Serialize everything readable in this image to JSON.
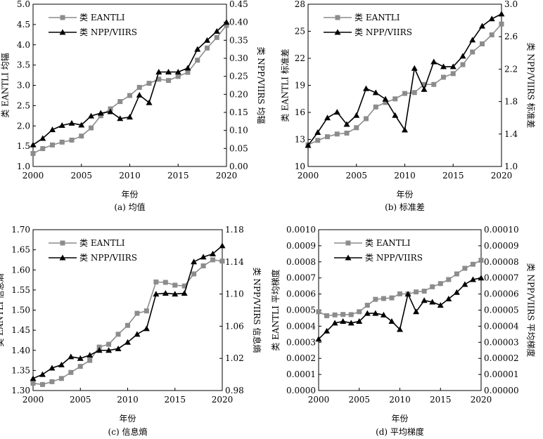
{
  "chart_data": [
    {
      "type": "line",
      "caption": "(a) 均值",
      "xlabel": "年份",
      "ylabel_left": "类 EANTLI 均辐",
      "ylabel_right": "类 NPP/VIIRS 均辐",
      "xlim": [
        2000,
        2020
      ],
      "x_ticks": [
        "2000",
        "2005",
        "2010",
        "2015",
        "2020"
      ],
      "ylim_left": [
        1.0,
        5.0
      ],
      "yticks_left": [
        "1.0",
        "1.5",
        "2.0",
        "2.5",
        "3.0",
        "3.5",
        "4.0",
        "4.5",
        "5.0"
      ],
      "ylim_right": [
        0.0,
        0.45
      ],
      "yticks_right": [
        "0.00",
        "0.05",
        "0.10",
        "0.15",
        "0.20",
        "0.25",
        "0.30",
        "0.35",
        "0.40",
        "0.45"
      ],
      "grid": false,
      "legend_position": "top-left",
      "x": [
        2000,
        2001,
        2002,
        2003,
        2004,
        2005,
        2006,
        2007,
        2008,
        2009,
        2010,
        2011,
        2012,
        2013,
        2014,
        2015,
        2016,
        2017,
        2018,
        2019,
        2020
      ],
      "series": [
        {
          "name": "类 EANTLI",
          "axis": "left",
          "marker": "square",
          "color": "#8c8c8c",
          "values": [
            1.32,
            1.44,
            1.53,
            1.6,
            1.65,
            1.75,
            1.95,
            2.25,
            2.42,
            2.6,
            2.75,
            2.95,
            3.05,
            3.15,
            3.12,
            3.22,
            3.32,
            3.62,
            3.92,
            4.18,
            4.48
          ]
        },
        {
          "name": "类 NPP/VIIRS",
          "axis": "right",
          "marker": "triangle",
          "color": "#000000",
          "values": [
            0.06,
            0.078,
            0.102,
            0.114,
            0.12,
            0.115,
            0.14,
            0.148,
            0.152,
            0.133,
            0.137,
            0.198,
            0.177,
            0.262,
            0.262,
            0.262,
            0.273,
            0.325,
            0.35,
            0.375,
            0.4
          ]
        }
      ]
    },
    {
      "type": "line",
      "caption": "(b) 标准差",
      "xlabel": "年份",
      "ylabel_left": "类 EANTLI 标准差",
      "ylabel_right": "类 NPP/VIIRS 标准差",
      "xlim": [
        2000,
        2020
      ],
      "x_ticks": [
        "2000",
        "2005",
        "2010",
        "2015",
        "2020"
      ],
      "ylim_left": [
        10,
        28
      ],
      "yticks_left": [
        "10",
        "13",
        "16",
        "19",
        "22",
        "25",
        "28"
      ],
      "ylim_right": [
        1.0,
        3.0
      ],
      "yticks_right": [
        "1.0",
        "1.4",
        "1.8",
        "2.2",
        "2.6",
        "3.0"
      ],
      "grid": false,
      "legend_position": "top-left",
      "x": [
        2000,
        2001,
        2002,
        2003,
        2004,
        2005,
        2006,
        2007,
        2008,
        2009,
        2010,
        2011,
        2012,
        2013,
        2014,
        2015,
        2016,
        2017,
        2018,
        2019,
        2020
      ],
      "series": [
        {
          "name": "类 EANTLI",
          "axis": "left",
          "marker": "square",
          "color": "#8c8c8c",
          "values": [
            12.4,
            12.9,
            13.3,
            13.6,
            13.7,
            14.3,
            15.3,
            16.6,
            17.1,
            17.5,
            18.1,
            18.2,
            19.1,
            19.1,
            19.9,
            20.3,
            21.3,
            22.7,
            23.6,
            24.6,
            25.8
          ]
        },
        {
          "name": "类 NPP/VIIRS",
          "axis": "right",
          "marker": "triangle",
          "color": "#000000",
          "values": [
            1.26,
            1.42,
            1.6,
            1.67,
            1.52,
            1.63,
            1.96,
            1.91,
            1.83,
            1.63,
            1.45,
            2.21,
            1.95,
            2.29,
            2.23,
            2.23,
            2.36,
            2.56,
            2.73,
            2.82,
            2.88
          ]
        }
      ]
    },
    {
      "type": "line",
      "caption": "(c) 信息熵",
      "xlabel": "年份",
      "ylabel_left": "类 EANTLI 信息熵",
      "ylabel_right": "类 NPP/VIIRS 信息熵",
      "xlim": [
        2000,
        2020
      ],
      "x_ticks": [
        "2000",
        "2005",
        "2010",
        "2015",
        "2020"
      ],
      "ylim_left": [
        1.3,
        1.7
      ],
      "yticks_left": [
        "1.30",
        "1.35",
        "1.40",
        "1.45",
        "1.50",
        "1.55",
        "1.60",
        "1.65",
        "1.70"
      ],
      "ylim_right": [
        0.98,
        1.18
      ],
      "yticks_right": [
        "0.98",
        "1.02",
        "1.06",
        "1.10",
        "1.14",
        "1.18"
      ],
      "grid": false,
      "legend_position": "top-left",
      "x": [
        2000,
        2001,
        2002,
        2003,
        2004,
        2005,
        2006,
        2007,
        2008,
        2009,
        2010,
        2011,
        2012,
        2013,
        2014,
        2015,
        2016,
        2017,
        2018,
        2019,
        2020
      ],
      "series": [
        {
          "name": "类 EANTLI",
          "axis": "left",
          "marker": "square",
          "color": "#8c8c8c",
          "values": [
            1.318,
            1.315,
            1.322,
            1.33,
            1.345,
            1.36,
            1.375,
            1.408,
            1.415,
            1.44,
            1.462,
            1.492,
            1.498,
            1.57,
            1.569,
            1.562,
            1.56,
            1.59,
            1.61,
            1.625,
            1.622
          ]
        },
        {
          "name": "类 NPP/VIIRS",
          "axis": "right",
          "marker": "triangle",
          "color": "#000000",
          "values": [
            0.995,
            1.0,
            1.008,
            1.012,
            1.022,
            1.02,
            1.024,
            1.03,
            1.03,
            1.032,
            1.04,
            1.05,
            1.057,
            1.1,
            1.101,
            1.1,
            1.101,
            1.14,
            1.146,
            1.15,
            1.16
          ]
        }
      ]
    },
    {
      "type": "line",
      "caption": "(d) 平均梯度",
      "xlabel": "年份",
      "ylabel_left": "类 EANTLI 平均梯度",
      "ylabel_right": "类 NPP/VIIRS 平均梯度",
      "xlim": [
        2000,
        2020
      ],
      "x_ticks": [
        "2000",
        "2005",
        "2010",
        "2015",
        "2020"
      ],
      "ylim_left": [
        0.0,
        0.001
      ],
      "yticks_left": [
        "0.0000",
        "0.0001",
        "0.0002",
        "0.0003",
        "0.0004",
        "0.0005",
        "0.0006",
        "0.0007",
        "0.0008",
        "0.0009",
        "0.0010"
      ],
      "ylim_right": [
        0.0,
        0.0001
      ],
      "yticks_right": [
        "0.00000",
        "0.00001",
        "0.00002",
        "0.00003",
        "0.00004",
        "0.00005",
        "0.00006",
        "0.00007",
        "0.00008",
        "0.00009",
        "0.00010"
      ],
      "grid": false,
      "legend_position": "top-left",
      "x": [
        2000,
        2001,
        2002,
        2003,
        2004,
        2005,
        2006,
        2007,
        2008,
        2009,
        2010,
        2011,
        2012,
        2013,
        2014,
        2015,
        2016,
        2017,
        2018,
        2019,
        2020
      ],
      "series": [
        {
          "name": "类 EANTLI",
          "axis": "left",
          "marker": "square",
          "color": "#8c8c8c",
          "values": [
            0.00049,
            0.000465,
            0.00047,
            0.000473,
            0.000472,
            0.00049,
            0.00053,
            0.000567,
            0.000572,
            0.000576,
            0.000601,
            0.0006,
            0.000613,
            0.000618,
            0.000645,
            0.000665,
            0.00069,
            0.000725,
            0.00076,
            0.000785,
            0.00081
          ]
        },
        {
          "name": "类 NPP/VIIRS",
          "axis": "right",
          "marker": "triangle",
          "color": "#000000",
          "values": [
            3.2e-05,
            3.7e-05,
            4.2e-05,
            4.3e-05,
            4.2e-05,
            4.3e-05,
            4.8e-05,
            4.8e-05,
            4.7e-05,
            4.3e-05,
            3.8e-05,
            6e-05,
            4.9e-05,
            5.6e-05,
            5.5e-05,
            5.3e-05,
            5.7e-05,
            6.1e-05,
            6.6e-05,
            6.9e-05,
            7e-05
          ]
        }
      ]
    }
  ]
}
